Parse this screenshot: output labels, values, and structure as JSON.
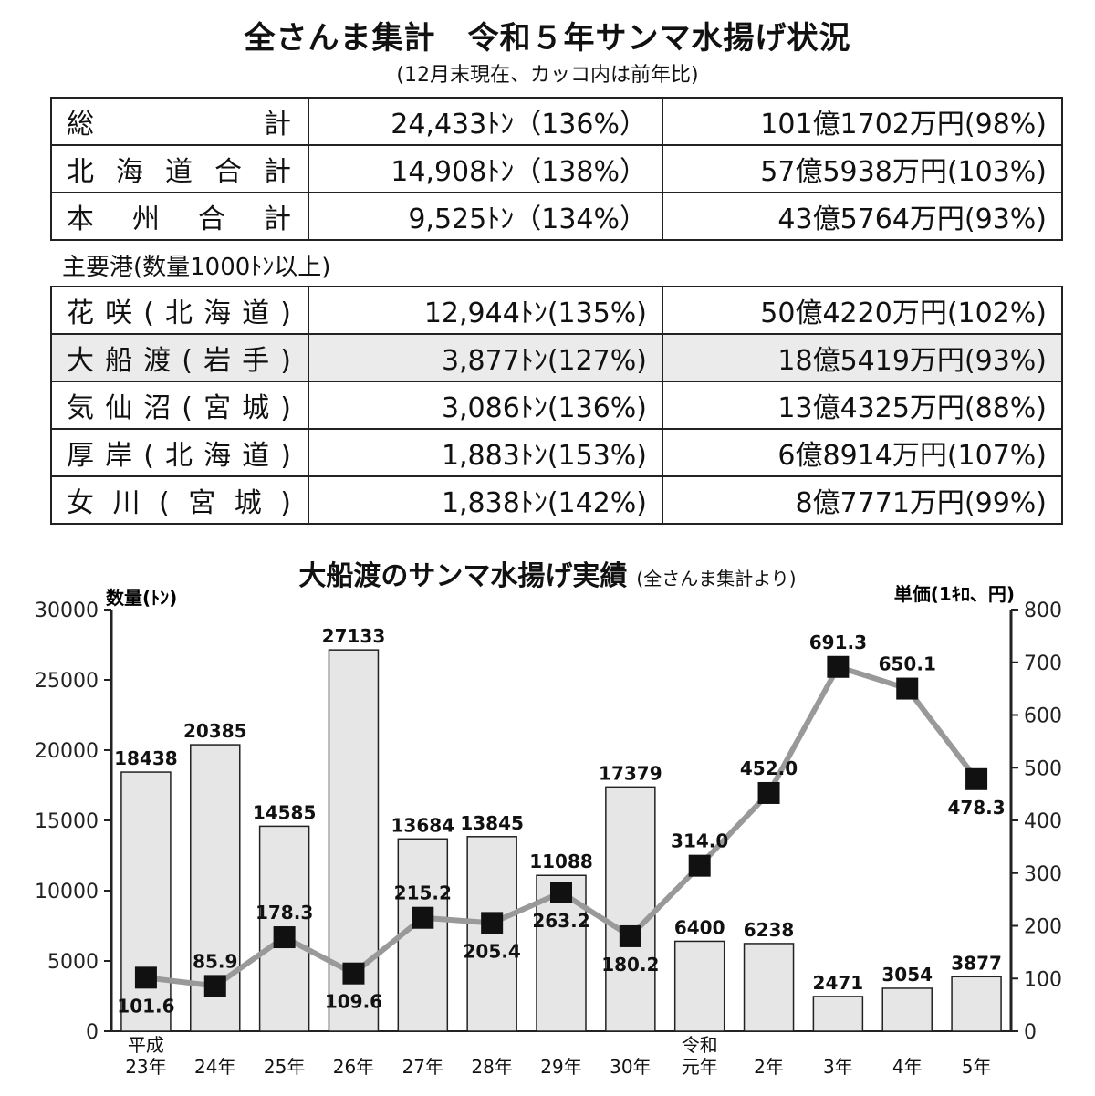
{
  "header": {
    "title": "全さんま集計　令和５年サンマ水揚げ状況",
    "subtitle": "(12月末現在、カッコ内は前年比)"
  },
  "totals": [
    {
      "name": "総計",
      "qty": "24,433ﾄﾝ（136%）",
      "amount": "101億1702万円(98%)"
    },
    {
      "name": "北海道合計",
      "qty": "14,908ﾄﾝ（138%）",
      "amount": "57億5938万円(103%)"
    },
    {
      "name": "本州合計",
      "qty": "9,525ﾄﾝ（134%）",
      "amount": "43億5764万円(93%)"
    }
  ],
  "ports_heading": "主要港(数量1000ﾄﾝ以上)",
  "ports": [
    {
      "name": "花咲(北海道)",
      "qty": "12,944ﾄﾝ(135%)",
      "amount": "50億4220万円(102%)"
    },
    {
      "name": "大船渡(岩手)",
      "qty": "3,877ﾄﾝ(127%)",
      "amount": "18億5419万円(93%)"
    },
    {
      "name": "気仙沼(宮城)",
      "qty": "3,086ﾄﾝ(136%)",
      "amount": "13億4325万円(88%)"
    },
    {
      "name": "厚岸(北海道)",
      "qty": "1,883ﾄﾝ(153%)",
      "amount": "6億8914万円(107%)"
    },
    {
      "name": "女川(宮城)",
      "qty": "1,838ﾄﾝ(142%)",
      "amount": "8億7771万円(99%)"
    }
  ],
  "chart_title": "大船渡のサンマ水揚げ実績",
  "chart_title_note": "(全さんま集計より)",
  "chart_data": {
    "type": "bar+line",
    "title": "大船渡のサンマ水揚げ実績",
    "subtitle": "(全さんま集計より)",
    "categories": [
      [
        "平成",
        "23年"
      ],
      [
        "24年"
      ],
      [
        "25年"
      ],
      [
        "26年"
      ],
      [
        "27年"
      ],
      [
        "28年"
      ],
      [
        "29年"
      ],
      [
        "30年"
      ],
      [
        "令和",
        "元年"
      ],
      [
        "2年"
      ],
      [
        "3年"
      ],
      [
        "4年"
      ],
      [
        "5年"
      ]
    ],
    "left_axis_label": "数量(ﾄﾝ)",
    "right_axis_label": "単価(1ｷﾛ、円)",
    "ylim_left": [
      0,
      30000
    ],
    "ylim_right": [
      0,
      800
    ],
    "left_ticks": [
      0,
      5000,
      10000,
      15000,
      20000,
      25000,
      30000
    ],
    "right_ticks": [
      0,
      100,
      200,
      300,
      400,
      500,
      600,
      700,
      800
    ],
    "bars": {
      "axis": "left",
      "values": [
        18438,
        20385,
        14585,
        27133,
        13684,
        13845,
        11088,
        17379,
        6400,
        6238,
        2471,
        3054,
        3877
      ],
      "labels": [
        "18438",
        "20385",
        "14585",
        "27133",
        "13684",
        "13845",
        "11088",
        "17379",
        "6400",
        "6238",
        "2471",
        "3054",
        "3877"
      ],
      "color": "#e6e6e6"
    },
    "line": {
      "axis": "right",
      "values": [
        101.6,
        85.9,
        178.3,
        109.6,
        215.2,
        205.4,
        263.2,
        180.2,
        314.0,
        452.0,
        691.3,
        650.1,
        478.3
      ],
      "labels": [
        "101.6",
        "85.9",
        "178.3",
        "109.6",
        "215.2",
        "205.4",
        "263.2",
        "180.2",
        "314.0",
        "452.0",
        "691.3",
        "650.1",
        "478.3"
      ],
      "label_position": [
        "below",
        "above",
        "above",
        "below",
        "above",
        "below",
        "below",
        "below",
        "above",
        "above",
        "above",
        "above",
        "below"
      ],
      "color": "#999999",
      "marker_color": "#111111"
    }
  }
}
